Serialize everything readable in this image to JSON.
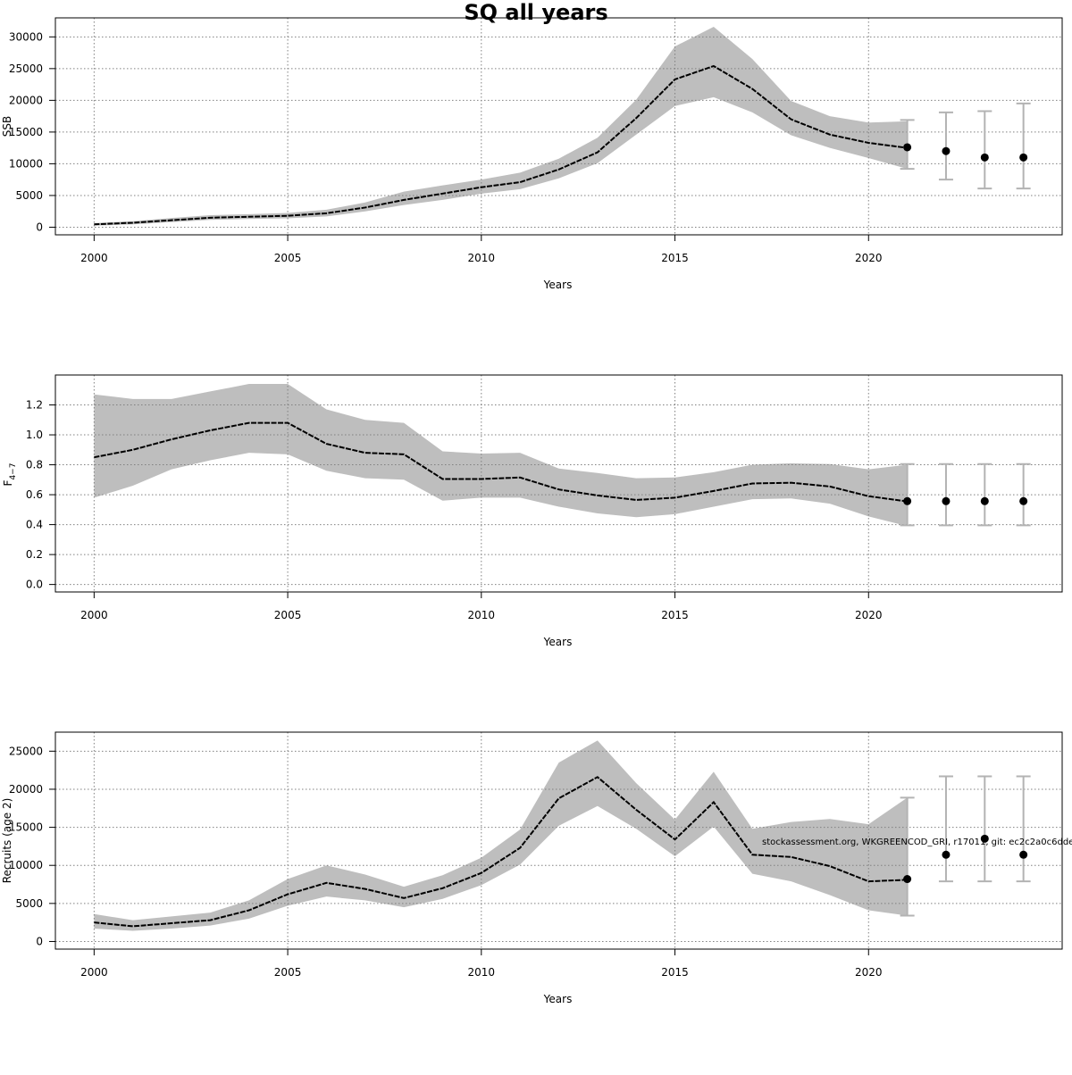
{
  "title": "SQ all years",
  "watermark": "stockassessment.org, WKGREENCOD_GRI, r17011, git: ec2c2a0c6dde",
  "colors": {
    "band": "#bebebe",
    "line": "#000000",
    "proj_bar": "#b3b3b3",
    "grid": "#808080",
    "frame": "#000000"
  },
  "chart_data": [
    {
      "type": "line",
      "title": "",
      "xlabel": "Years",
      "ylabel": "SSB",
      "xlim": [
        1999,
        2025
      ],
      "ylim": [
        -1200,
        33000
      ],
      "xticks": [
        2000,
        2005,
        2010,
        2015,
        2020
      ],
      "yticks": [
        0,
        5000,
        10000,
        15000,
        20000,
        25000,
        30000
      ],
      "grid": true,
      "x": [
        2000,
        2001,
        2002,
        2003,
        2004,
        2005,
        2006,
        2007,
        2008,
        2009,
        2010,
        2011,
        2012,
        2013,
        2014,
        2015,
        2016,
        2017,
        2018,
        2019,
        2020,
        2021
      ],
      "series": [
        {
          "role": "estimate",
          "values": [
            450,
            700,
            1100,
            1500,
            1650,
            1800,
            2200,
            3100,
            4300,
            5300,
            6300,
            7100,
            9100,
            11800,
            17200,
            23300,
            25400,
            21800,
            17000,
            14600,
            13300,
            12500
          ]
        },
        {
          "role": "lower",
          "values": [
            250,
            450,
            800,
            1150,
            1300,
            1400,
            1700,
            2500,
            3500,
            4300,
            5300,
            6000,
            7700,
            10100,
            14600,
            19100,
            20500,
            18100,
            14500,
            12500,
            10900,
            9200
          ]
        },
        {
          "role": "upper",
          "values": [
            650,
            950,
            1450,
            1900,
            2050,
            2250,
            2750,
            3900,
            5600,
            6600,
            7500,
            8600,
            10800,
            14100,
            20100,
            28500,
            31600,
            26500,
            19900,
            17500,
            16500,
            16700
          ]
        }
      ],
      "projection": {
        "x": [
          2021,
          2022,
          2023,
          2024
        ],
        "values": [
          12600,
          12000,
          11000,
          11000
        ],
        "lower": [
          9200,
          7500,
          6100,
          6100
        ],
        "upper": [
          16900,
          18100,
          18300,
          19500
        ]
      }
    },
    {
      "type": "line",
      "title": "",
      "xlabel": "Years",
      "ylabel": "F",
      "ylabel_subscript": "4−7",
      "xlim": [
        1999,
        2025
      ],
      "ylim": [
        -0.05,
        1.4
      ],
      "xticks": [
        2000,
        2005,
        2010,
        2015,
        2020
      ],
      "yticks": [
        "0.0",
        "0.2",
        "0.4",
        "0.6",
        "0.8",
        "1.0",
        "1.2"
      ],
      "grid": true,
      "x": [
        2000,
        2001,
        2002,
        2003,
        2004,
        2005,
        2006,
        2007,
        2008,
        2009,
        2010,
        2011,
        2012,
        2013,
        2014,
        2015,
        2016,
        2017,
        2018,
        2019,
        2020,
        2021
      ],
      "series": [
        {
          "role": "estimate",
          "values": [
            0.85,
            0.9,
            0.97,
            1.03,
            1.08,
            1.08,
            0.94,
            0.88,
            0.87,
            0.705,
            0.705,
            0.715,
            0.635,
            0.595,
            0.565,
            0.58,
            0.625,
            0.675,
            0.68,
            0.655,
            0.59,
            0.555
          ]
        },
        {
          "role": "lower",
          "values": [
            0.58,
            0.66,
            0.77,
            0.83,
            0.88,
            0.87,
            0.76,
            0.71,
            0.7,
            0.56,
            0.58,
            0.58,
            0.52,
            0.475,
            0.45,
            0.47,
            0.52,
            0.57,
            0.575,
            0.54,
            0.455,
            0.39
          ]
        },
        {
          "role": "upper",
          "values": [
            1.27,
            1.24,
            1.24,
            1.29,
            1.34,
            1.34,
            1.17,
            1.1,
            1.08,
            0.89,
            0.875,
            0.88,
            0.775,
            0.745,
            0.71,
            0.715,
            0.75,
            0.8,
            0.81,
            0.805,
            0.77,
            0.8
          ]
        }
      ],
      "projection": {
        "x": [
          2021,
          2022,
          2023,
          2024
        ],
        "values": [
          0.557,
          0.557,
          0.557,
          0.557
        ],
        "lower": [
          0.395,
          0.395,
          0.395,
          0.395
        ],
        "upper": [
          0.805,
          0.805,
          0.805,
          0.805
        ]
      }
    },
    {
      "type": "line",
      "title": "",
      "xlabel": "Years",
      "ylabel": "Recruits (age 2)",
      "xlim": [
        1999,
        2025
      ],
      "ylim": [
        -1000,
        27500
      ],
      "xticks": [
        2000,
        2005,
        2010,
        2015,
        2020
      ],
      "yticks": [
        0,
        5000,
        10000,
        15000,
        20000,
        25000
      ],
      "grid": true,
      "x": [
        2000,
        2001,
        2002,
        2003,
        2004,
        2005,
        2006,
        2007,
        2008,
        2009,
        2010,
        2011,
        2012,
        2013,
        2014,
        2015,
        2016,
        2017,
        2018,
        2019,
        2020,
        2021
      ],
      "series": [
        {
          "role": "estimate",
          "values": [
            2500,
            2000,
            2400,
            2800,
            4100,
            6200,
            7700,
            6900,
            5700,
            7000,
            9000,
            12300,
            18800,
            21600,
            17300,
            13400,
            18300,
            11400,
            11100,
            9900,
            7900,
            8100
          ]
        },
        {
          "role": "lower",
          "values": [
            1700,
            1400,
            1700,
            2100,
            3000,
            4700,
            5900,
            5400,
            4500,
            5600,
            7400,
            10100,
            15200,
            17800,
            14800,
            11200,
            15100,
            8900,
            7900,
            6100,
            4100,
            3400
          ]
        },
        {
          "role": "upper",
          "values": [
            3600,
            2800,
            3300,
            3800,
            5400,
            8200,
            10000,
            8800,
            7200,
            8700,
            11000,
            14700,
            23500,
            26400,
            20800,
            16000,
            22300,
            14800,
            15700,
            16100,
            15400,
            18900
          ]
        }
      ],
      "projection": {
        "x": [
          2021,
          2022,
          2023,
          2024
        ],
        "values": [
          8200,
          11400,
          13500,
          11400
        ],
        "lower": [
          3400,
          7900,
          7900,
          7900
        ],
        "upper": [
          18900,
          21700,
          21700,
          21700
        ]
      }
    }
  ]
}
